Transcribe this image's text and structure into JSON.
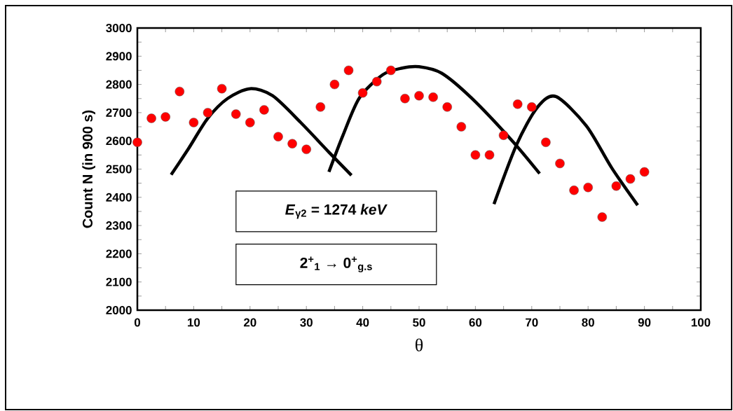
{
  "chart_data": {
    "type": "scatter",
    "xlabel": "θ",
    "ylabel": "Count N (in 900 s)",
    "xlim": [
      0,
      100
    ],
    "ylim": [
      2000,
      3000
    ],
    "xticks": [
      0,
      10,
      20,
      30,
      40,
      50,
      60,
      70,
      80,
      90,
      100
    ],
    "yticks": [
      2000,
      2100,
      2200,
      2300,
      2400,
      2500,
      2600,
      2700,
      2800,
      2900,
      3000
    ],
    "grid": false,
    "annotations": [
      "*E*$_{γ2}$ = 1274 *keV*",
      "2$^{+}$$_{1}$ → 0$^{+}$$_{g.s}$"
    ],
    "series": [
      {
        "color": "#ff0000",
        "marker": "circle",
        "x": [
          0,
          2.5,
          5,
          7.5,
          10,
          12.5,
          15,
          17.5,
          20,
          22.5,
          25,
          27.5,
          30,
          32.5,
          35,
          37.5,
          40,
          42.5,
          45,
          47.5,
          50,
          52.5,
          55,
          57.5,
          60,
          62.5,
          65,
          67.5,
          70,
          72.5,
          75,
          77.5,
          80,
          82.5,
          85,
          87.5,
          90
        ],
        "values": [
          2595,
          2680,
          2685,
          2775,
          2665,
          2700,
          2785,
          2695,
          2665,
          2710,
          2615,
          2590,
          2570,
          2720,
          2800,
          2850,
          2770,
          2810,
          2850,
          2750,
          2760,
          2755,
          2720,
          2650,
          2550,
          2550,
          2620,
          2730,
          2720,
          2595,
          2520,
          2425,
          2435,
          2330,
          2440,
          2465,
          2490
        ]
      },
      {
        "type": "line",
        "color": "#000000",
        "marker": "none",
        "x": [
          6,
          9,
          12.5,
          16,
          20,
          24,
          29,
          34,
          38
        ],
        "values": [
          2480,
          2570,
          2680,
          2750,
          2785,
          2760,
          2665,
          2560,
          2478
        ]
      },
      {
        "type": "line",
        "color": "#000000",
        "marker": "none",
        "x": [
          34,
          36.5,
          39.4,
          43.6,
          47,
          50,
          54,
          59.3,
          66.4,
          71.4
        ],
        "values": [
          2490,
          2620,
          2752,
          2835,
          2858,
          2863,
          2840,
          2752,
          2603,
          2484
        ]
      },
      {
        "type": "line",
        "color": "#000000",
        "marker": "none",
        "x": [
          63.3,
          67.3,
          71,
          74.3,
          79.7,
          84.2,
          88.8
        ],
        "values": [
          2376,
          2586,
          2719,
          2757,
          2653,
          2504,
          2372
        ]
      }
    ]
  }
}
